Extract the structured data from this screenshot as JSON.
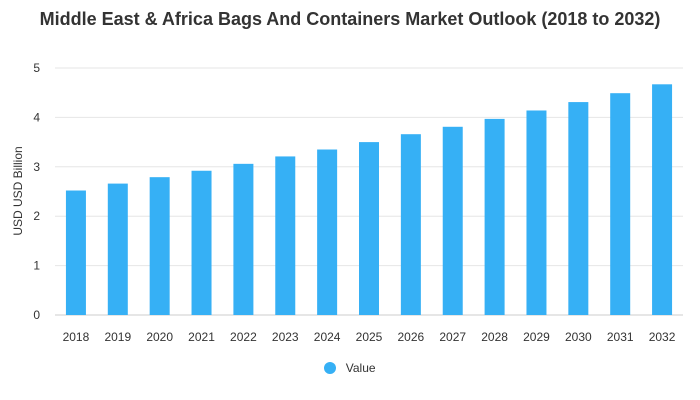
{
  "chart_data": {
    "type": "bar",
    "title": "Middle East & Africa Bags And Containers Market Outlook (2018 to 2032)",
    "ylabel": "USD USD Billion",
    "xlabel": "",
    "ylim": [
      0,
      5
    ],
    "yticks": [
      0,
      1,
      2,
      3,
      4,
      5
    ],
    "grid": true,
    "legend_position": "bottom",
    "categories": [
      "2018",
      "2019",
      "2020",
      "2021",
      "2022",
      "2023",
      "2024",
      "2025",
      "2026",
      "2027",
      "2028",
      "2029",
      "2030",
      "2031",
      "2032"
    ],
    "series": [
      {
        "name": "Value",
        "color": "#36b0f5",
        "values": [
          2.52,
          2.66,
          2.79,
          2.92,
          3.06,
          3.21,
          3.35,
          3.5,
          3.66,
          3.81,
          3.97,
          4.14,
          4.31,
          4.49,
          4.67
        ]
      }
    ]
  }
}
